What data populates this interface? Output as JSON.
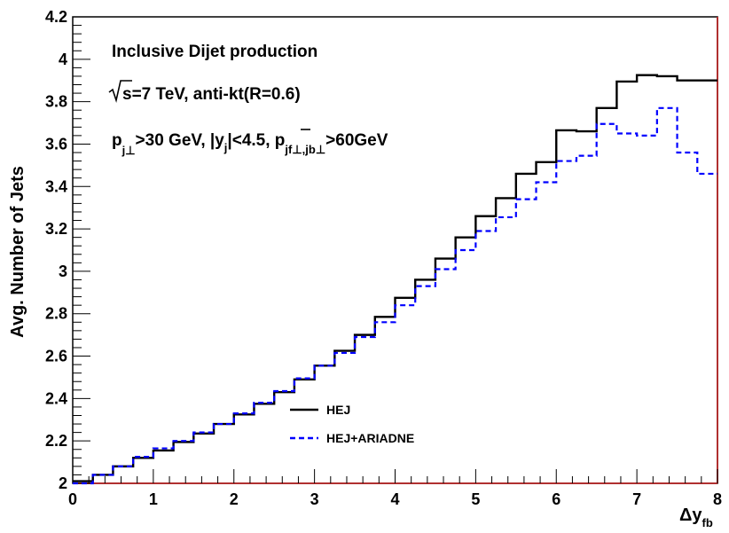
{
  "chart_data": {
    "type": "line",
    "step": true,
    "xlabel": "Δy",
    "xlabel_sub": "fb",
    "ylabel": "Avg. Number of Jets",
    "xlim": [
      0,
      8
    ],
    "ylim": [
      2,
      4.2
    ],
    "x_ticks": [
      "0",
      "1",
      "2",
      "3",
      "4",
      "5",
      "6",
      "7",
      "8"
    ],
    "y_ticks": [
      "2",
      "2.2",
      "2.4",
      "2.6",
      "2.8",
      "3",
      "3.2",
      "3.4",
      "3.6",
      "3.8",
      "4",
      "4.2"
    ],
    "bin_edges": [
      0,
      0.25,
      0.5,
      0.75,
      1,
      1.25,
      1.5,
      1.75,
      2,
      2.25,
      2.5,
      2.75,
      3,
      3.25,
      3.5,
      3.75,
      4,
      4.25,
      4.5,
      4.75,
      5,
      5.25,
      5.5,
      5.75,
      6,
      6.25,
      6.5,
      6.75,
      7,
      7.25,
      7.5,
      7.75,
      8
    ],
    "series": [
      {
        "name": "HEJ",
        "color": "#000000",
        "style": "solid",
        "values": [
          2.01,
          2.04,
          2.08,
          2.12,
          2.155,
          2.195,
          2.235,
          2.28,
          2.325,
          2.375,
          2.43,
          2.49,
          2.555,
          2.625,
          2.7,
          2.785,
          2.875,
          2.96,
          3.06,
          3.16,
          3.26,
          3.345,
          3.46,
          3.515,
          3.665,
          3.66,
          3.77,
          3.895,
          3.925,
          3.92,
          3.9,
          3.9
        ]
      },
      {
        "name": "HEJ+ARIADNE",
        "color": "#0000ff",
        "style": "dashed",
        "values": [
          2.0,
          2.04,
          2.08,
          2.125,
          2.165,
          2.2,
          2.24,
          2.28,
          2.33,
          2.38,
          2.435,
          2.495,
          2.555,
          2.615,
          2.69,
          2.76,
          2.84,
          2.93,
          3.01,
          3.1,
          3.19,
          3.255,
          3.34,
          3.42,
          3.52,
          3.545,
          3.695,
          3.65,
          3.64,
          3.77,
          3.56,
          3.46
        ]
      }
    ],
    "annotations": {
      "line1": "Inclusive Dijet production",
      "line2_root": "s",
      "line2_rest": "=7 TeV, anti-kt(R=0.6)",
      "line3_p": "p",
      "line3_psub": "j⊥",
      "line3_a": ">30 GeV, |y",
      "line3_ysub": "j",
      "line3_b": "|<4.5, ",
      "line3_pbar": "p",
      "line3_pbarsub": "jf⊥,jb⊥",
      "line3_c": ">60GeV"
    },
    "legend_position": "bottom-center",
    "grid": false
  }
}
